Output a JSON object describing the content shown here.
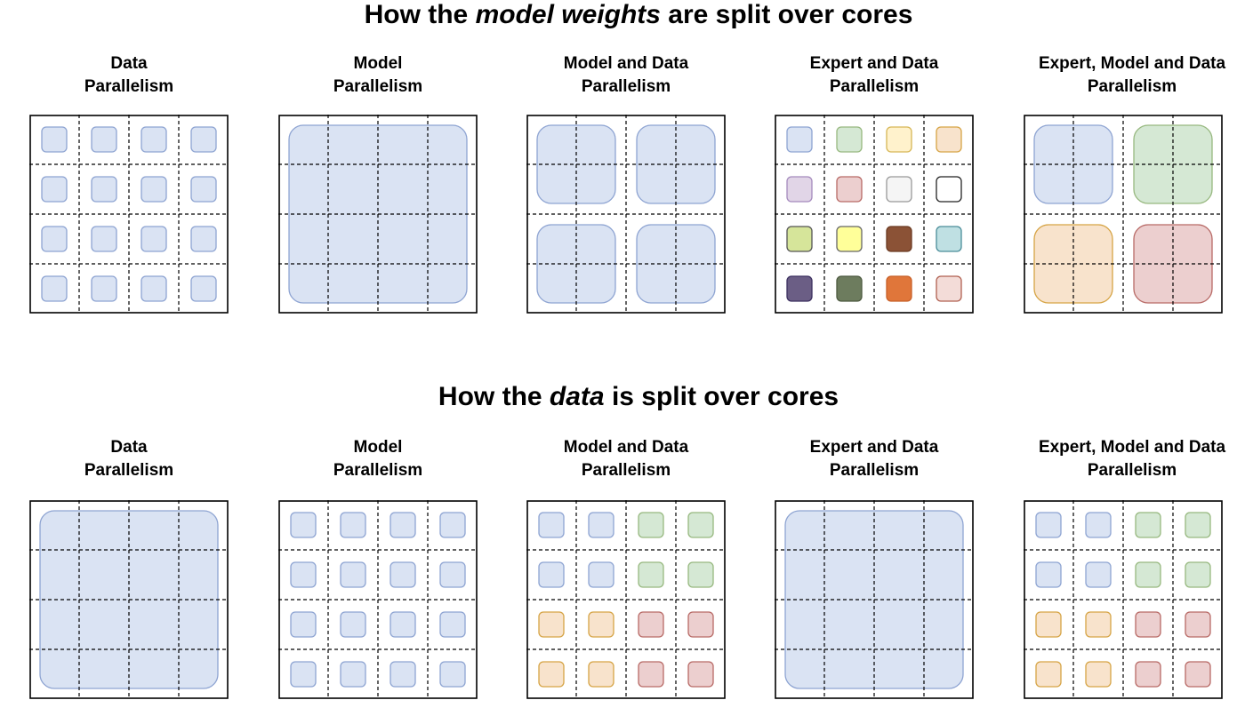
{
  "sections": [
    {
      "heading": {
        "pre": "How the ",
        "em": "model weights",
        "post": " are split over cores"
      },
      "panels": [
        {
          "title": [
            "Data",
            "Parallelism"
          ],
          "blocks": "each-cell",
          "color": "blue"
        },
        {
          "title": [
            "Model",
            "Parallelism"
          ],
          "blocks": [
            {
              "r": 0,
              "c": 0,
              "rs": 4,
              "cs": 4,
              "color": "blue"
            }
          ]
        },
        {
          "title": [
            "Model and Data",
            "Parallelism"
          ],
          "blocks": [
            {
              "r": 0,
              "c": 0,
              "rs": 2,
              "cs": 2,
              "color": "blue"
            },
            {
              "r": 0,
              "c": 2,
              "rs": 2,
              "cs": 2,
              "color": "blue"
            },
            {
              "r": 2,
              "c": 0,
              "rs": 2,
              "cs": 2,
              "color": "blue"
            },
            {
              "r": 2,
              "c": 2,
              "rs": 2,
              "cs": 2,
              "color": "blue"
            }
          ]
        },
        {
          "title": [
            "Expert and Data",
            "Parallelism"
          ],
          "blocks": "each-cell-colors",
          "colors": [
            [
              "blue",
              "green",
              "yellow",
              "orange"
            ],
            [
              "purple",
              "red",
              "gray",
              "white"
            ],
            [
              "lime",
              "brightyellow",
              "brown",
              "teal"
            ],
            [
              "darkpurple",
              "darkgreen",
              "deeporange",
              "pink"
            ]
          ]
        },
        {
          "title": [
            "Expert, Model and Data",
            "Parallelism"
          ],
          "blocks": [
            {
              "r": 0,
              "c": 0,
              "rs": 2,
              "cs": 2,
              "color": "blue"
            },
            {
              "r": 0,
              "c": 2,
              "rs": 2,
              "cs": 2,
              "color": "green"
            },
            {
              "r": 2,
              "c": 0,
              "rs": 2,
              "cs": 2,
              "color": "orange"
            },
            {
              "r": 2,
              "c": 2,
              "rs": 2,
              "cs": 2,
              "color": "red"
            }
          ]
        }
      ]
    },
    {
      "heading": {
        "pre": "How the ",
        "em": "data",
        "post": " is split over cores"
      },
      "panels": [
        {
          "title": [
            "Data",
            "Parallelism"
          ],
          "blocks": [
            {
              "r": 0,
              "c": 0,
              "rs": 4,
              "cs": 4,
              "color": "blue"
            }
          ]
        },
        {
          "title": [
            "Model",
            "Parallelism"
          ],
          "blocks": "each-cell",
          "color": "blue"
        },
        {
          "title": [
            "Model and Data",
            "Parallelism"
          ],
          "blocks": "each-cell-colors",
          "colors": [
            [
              "blue",
              "blue",
              "green",
              "green"
            ],
            [
              "blue",
              "blue",
              "green",
              "green"
            ],
            [
              "orange",
              "orange",
              "red",
              "red"
            ],
            [
              "orange",
              "orange",
              "red",
              "red"
            ]
          ]
        },
        {
          "title": [
            "Expert and Data",
            "Parallelism"
          ],
          "blocks": [
            {
              "r": 0,
              "c": 0,
              "rs": 4,
              "cs": 4,
              "color": "blue"
            }
          ]
        },
        {
          "title": [
            "Expert, Model and Data",
            "Parallelism"
          ],
          "blocks": "each-cell-colors",
          "colors": [
            [
              "blue",
              "blue",
              "green",
              "green"
            ],
            [
              "blue",
              "blue",
              "green",
              "green"
            ],
            [
              "orange",
              "orange",
              "red",
              "red"
            ],
            [
              "orange",
              "orange",
              "red",
              "red"
            ]
          ]
        }
      ]
    }
  ],
  "palette": {
    "blue": [
      "#dae3f3",
      "#8ea4d2"
    ],
    "green": [
      "#d5e8d4",
      "#97b87f"
    ],
    "yellow": [
      "#fff2cc",
      "#d6b656"
    ],
    "orange": [
      "#f8e3cc",
      "#d6a445"
    ],
    "purple": [
      "#e1d5e7",
      "#a58bbd"
    ],
    "red": [
      "#eccfcf",
      "#b86a66"
    ],
    "gray": [
      "#f5f5f5",
      "#999999"
    ],
    "white": [
      "#ffffff",
      "#222222"
    ],
    "lime": [
      "#d6e59a",
      "#555555"
    ],
    "brightyellow": [
      "#ffff99",
      "#666666"
    ],
    "brown": [
      "#8b5236",
      "#6b3a22"
    ],
    "teal": [
      "#bfe0e3",
      "#4a8d99"
    ],
    "darkpurple": [
      "#6b5e85",
      "#3c3060"
    ],
    "darkgreen": [
      "#6d7c5e",
      "#4d5a40"
    ],
    "deeporange": [
      "#e0763a",
      "#c86028"
    ],
    "pink": [
      "#f3dcd8",
      "#b06050"
    ]
  }
}
